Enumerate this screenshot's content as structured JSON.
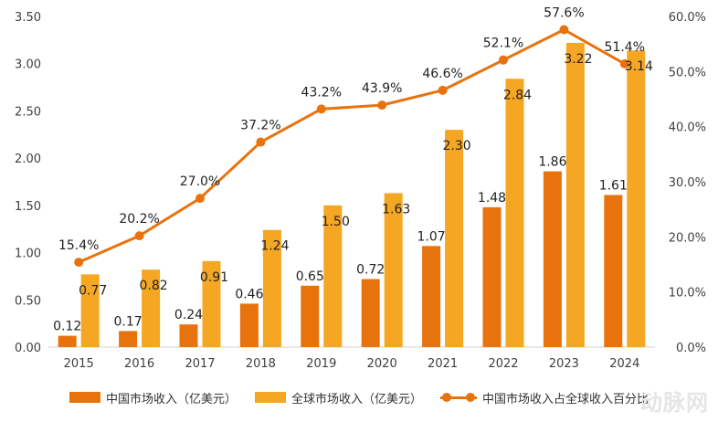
{
  "chart_data": {
    "type": "bar",
    "categories": [
      "2015",
      "2016",
      "2017",
      "2018",
      "2019",
      "2020",
      "2021",
      "2022",
      "2023",
      "2024"
    ],
    "series": [
      {
        "name": "中国市场收入（亿美元）",
        "type": "bar",
        "axis": "left",
        "color": "#E8730C",
        "values": [
          0.12,
          0.17,
          0.24,
          0.46,
          0.65,
          0.72,
          1.07,
          1.48,
          1.86,
          1.61
        ],
        "labels": [
          "0.12",
          "0.17",
          "0.24",
          "0.46",
          "0.65",
          "0.72",
          "1.07",
          "1.48",
          "1.86",
          "1.61"
        ]
      },
      {
        "name": "全球市场收入（亿美元）",
        "type": "bar",
        "axis": "left",
        "color": "#F5A623",
        "values": [
          0.77,
          0.82,
          0.91,
          1.24,
          1.5,
          1.63,
          2.3,
          2.84,
          3.22,
          3.14
        ],
        "labels": [
          "0.77",
          "0.82",
          "0.91",
          "1.24",
          "1.50",
          "1.63",
          "2.30",
          "2.84",
          "3.22",
          "3.14"
        ]
      },
      {
        "name": "中国市场收入占全球收入百分比",
        "type": "line",
        "axis": "right",
        "color": "#E8730C",
        "values": [
          15.4,
          20.2,
          27.0,
          37.2,
          43.2,
          43.9,
          46.6,
          52.1,
          57.6,
          51.4
        ],
        "labels": [
          "15.4%",
          "20.2%",
          "27.0%",
          "37.2%",
          "43.2%",
          "43.9%",
          "46.6%",
          "52.1%",
          "57.6%",
          "51.4%"
        ]
      }
    ],
    "ylim": [
      0,
      3.5
    ],
    "y_ticks": [
      "0.00",
      "0.50",
      "1.00",
      "1.50",
      "2.00",
      "2.50",
      "3.00",
      "3.50"
    ],
    "y2lim": [
      0,
      60
    ],
    "y2_ticks": [
      "0.0%",
      "10.0%",
      "20.0%",
      "30.0%",
      "40.0%",
      "50.0%",
      "60.0%"
    ],
    "grid": false,
    "legend_position": "bottom"
  },
  "watermark": "动脉网"
}
